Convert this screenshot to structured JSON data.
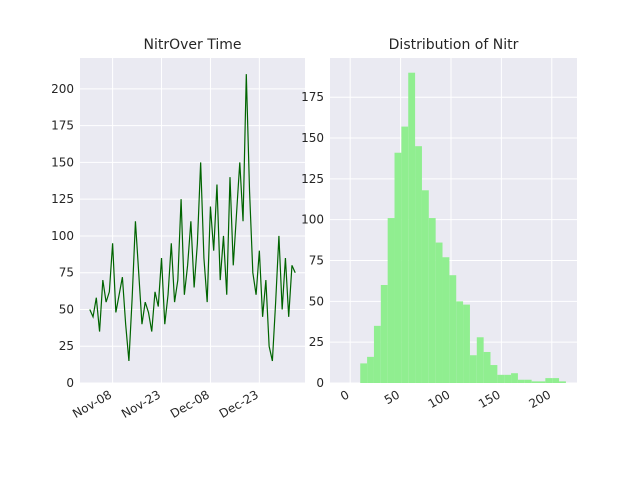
{
  "chart_data": [
    {
      "type": "line",
      "title": "NitrOver Time",
      "x": [
        "Nov-01",
        "Nov-02",
        "Nov-03",
        "Nov-04",
        "Nov-05",
        "Nov-06",
        "Nov-07",
        "Nov-08",
        "Nov-09",
        "Nov-10",
        "Nov-11",
        "Nov-12",
        "Nov-13",
        "Nov-14",
        "Nov-15",
        "Nov-16",
        "Nov-17",
        "Nov-18",
        "Nov-19",
        "Nov-20",
        "Nov-21",
        "Nov-22",
        "Nov-23",
        "Nov-24",
        "Nov-25",
        "Nov-26",
        "Nov-27",
        "Nov-28",
        "Nov-29",
        "Nov-30",
        "Dec-01",
        "Dec-02",
        "Dec-03",
        "Dec-04",
        "Dec-05",
        "Dec-06",
        "Dec-07",
        "Dec-08",
        "Dec-09",
        "Dec-10",
        "Dec-11",
        "Dec-12",
        "Dec-13",
        "Dec-14",
        "Dec-15",
        "Dec-16",
        "Dec-17",
        "Dec-18",
        "Dec-19",
        "Dec-20",
        "Dec-21",
        "Dec-22",
        "Dec-23",
        "Dec-24",
        "Dec-25",
        "Dec-26",
        "Dec-27",
        "Dec-28",
        "Dec-29",
        "Dec-30",
        "Dec-31",
        "Jan-01",
        "Jan-02",
        "Jan-03"
      ],
      "values": [
        50,
        45,
        58,
        35,
        70,
        55,
        62,
        95,
        48,
        60,
        72,
        40,
        15,
        58,
        110,
        75,
        40,
        55,
        48,
        35,
        62,
        52,
        85,
        40,
        60,
        95,
        55,
        70,
        125,
        60,
        80,
        110,
        65,
        95,
        150,
        85,
        55,
        120,
        90,
        135,
        70,
        100,
        60,
        140,
        80,
        115,
        150,
        110,
        210,
        130,
        75,
        60,
        90,
        45,
        70,
        25,
        15,
        55,
        100,
        50,
        85,
        45,
        80,
        75
      ],
      "color": "#006400",
      "xlim": [
        "Oct-29",
        "Jan-06"
      ],
      "xticks": [
        "Nov-08",
        "Nov-23",
        "Dec-08",
        "Dec-23"
      ],
      "ylim": [
        0,
        221
      ],
      "yticks": [
        0,
        25,
        50,
        75,
        100,
        125,
        150,
        175,
        200
      ],
      "grid": true
    },
    {
      "type": "histogram",
      "title": "Distribution of Nitr",
      "bins": [
        10,
        16.8,
        23.6,
        30.4,
        37.2,
        44,
        50.8,
        57.6,
        64.4,
        71.2,
        78,
        84.8,
        91.6,
        98.4,
        105.2,
        112,
        118.8,
        125.6,
        132.4,
        139.2,
        146,
        152.8,
        159.6,
        166.4,
        173.2,
        180,
        186.8,
        193.6,
        200.4,
        207.2,
        214
      ],
      "values": [
        12,
        16,
        35,
        60,
        101,
        141,
        157,
        190,
        145,
        118,
        101,
        86,
        77,
        66,
        50,
        48,
        17,
        28,
        19,
        11,
        5,
        5,
        6,
        2,
        2,
        1,
        1,
        3,
        3,
        1
      ],
      "color": "#90ee90",
      "xlim": [
        -20,
        225
      ],
      "xticks": [
        0,
        50,
        100,
        150,
        200
      ],
      "ylim": [
        0,
        199
      ],
      "yticks": [
        0,
        25,
        50,
        75,
        100,
        125,
        150,
        175
      ],
      "grid": true
    }
  ]
}
